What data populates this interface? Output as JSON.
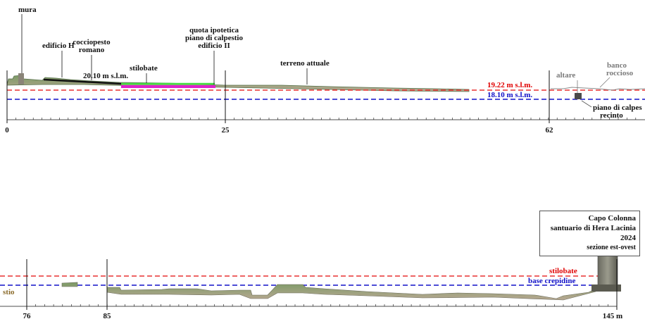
{
  "top_section": {
    "labels": {
      "mura": "mura",
      "edificio_h": "edificio H",
      "cocciopesto": [
        "cocciopesto",
        "romano"
      ],
      "quota_20": "20.10 m s.l.m.",
      "stilobate": "stilobate",
      "quota_ipotetica": [
        "quota ipotetica",
        "piano di calpestio",
        "edificio II"
      ],
      "terreno": "terreno attuale",
      "quota_19": "19.22 m s.l.m.",
      "quota_18": "18.10 m s.l.m.",
      "altare": "altare",
      "banco": [
        "banco",
        "roccioso"
      ],
      "piano_recinto": [
        "piano di calpes",
        "recinto"
      ]
    },
    "ticks": [
      "0",
      "25",
      "62"
    ]
  },
  "bottom_section": {
    "labels": {
      "stio": "stio",
      "stilobate": "stilobate",
      "base_crepidine": "base crepidine"
    },
    "ticks": [
      "76",
      "85",
      "145 m"
    ]
  },
  "info_box": {
    "line1": "Capo Colonna",
    "line2": "santuario di Hera Lacinia",
    "line3": "2024",
    "line4": "sezione est-ovest"
  },
  "colors": {
    "red_line": "#e83030",
    "blue_line": "#1010c8",
    "ground_green": "#6a8a5a",
    "stilobate_green": "#44dd44",
    "magenta": "#dd22cc"
  }
}
